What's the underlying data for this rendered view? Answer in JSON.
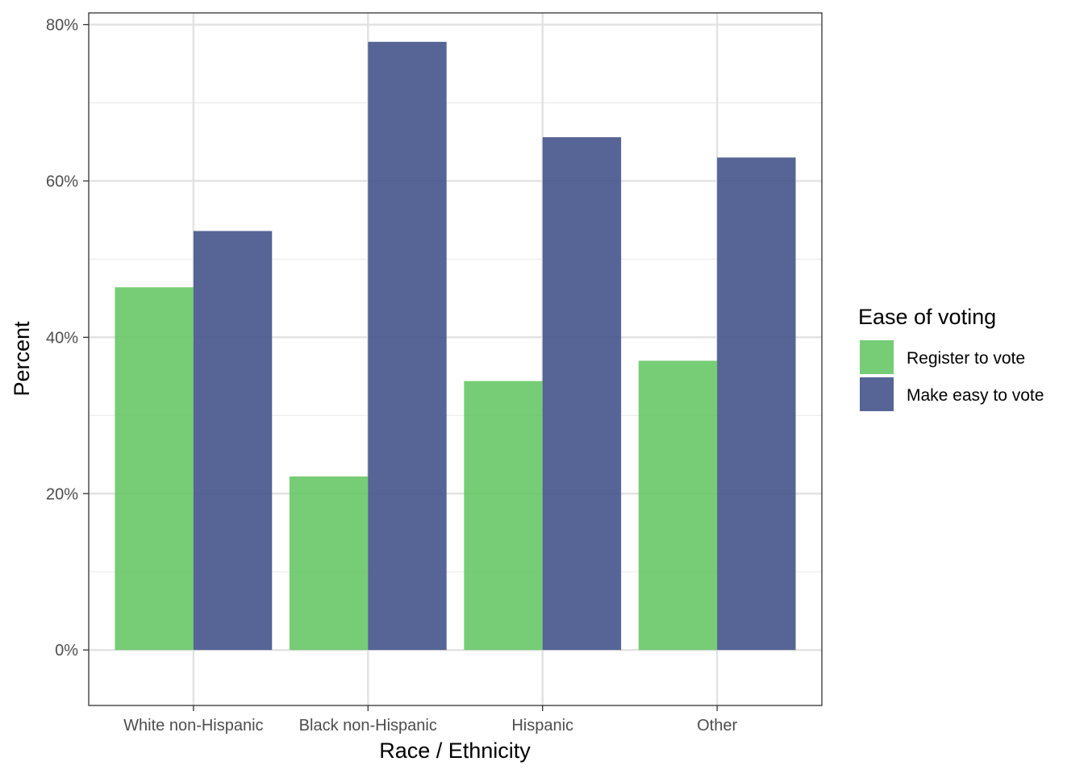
{
  "chart_data": {
    "type": "bar",
    "categories": [
      "White non-Hispanic",
      "Black non-Hispanic",
      "Hispanic",
      "Other"
    ],
    "series": [
      {
        "name": "Register to vote",
        "values": [
          46.4,
          22.2,
          34.4,
          37.0
        ],
        "color": "#5ec45e"
      },
      {
        "name": "Make easy to vote",
        "values": [
          53.6,
          77.8,
          65.6,
          63.0
        ],
        "color": "#3f5088"
      }
    ],
    "xlabel": "Race / Ethnicity",
    "ylabel": "Percent",
    "ylim": [
      -7.1,
      81.5
    ],
    "yticks": [
      0,
      20,
      40,
      60,
      80
    ],
    "ytick_labels": [
      "0%",
      "20%",
      "40%",
      "60%",
      "80%"
    ],
    "legend": {
      "title": "Ease of voting",
      "position": "right"
    },
    "grid": true
  }
}
